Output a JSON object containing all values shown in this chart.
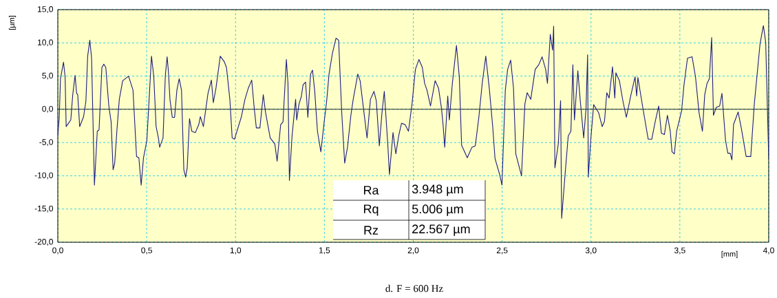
{
  "chart_data": {
    "type": "line",
    "xlabel": "[mm]",
    "ylabel": "[µm]",
    "xlim": [
      0,
      4
    ],
    "ylim": [
      -20,
      15
    ],
    "xticks": [
      {
        "value": 0,
        "label": "0,0"
      },
      {
        "value": 0.5,
        "label": "0,5"
      },
      {
        "value": 1,
        "label": "1,0"
      },
      {
        "value": 1.5,
        "label": "1,5"
      },
      {
        "value": 2,
        "label": "2,0"
      },
      {
        "value": 2.5,
        "label": "2,5"
      },
      {
        "value": 3,
        "label": "3,0"
      },
      {
        "value": 3.5,
        "label": "3,5"
      },
      {
        "value": 4,
        "label": "4,0"
      }
    ],
    "yticks": [
      {
        "value": -20,
        "label": "-20,0"
      },
      {
        "value": -15,
        "label": "-15,0"
      },
      {
        "value": -10,
        "label": "-10,0"
      },
      {
        "value": -5,
        "label": "-5,0"
      },
      {
        "value": 0,
        "label": "0,0"
      },
      {
        "value": 5,
        "label": "5,0"
      },
      {
        "value": 10,
        "label": "10,0"
      },
      {
        "value": 15,
        "label": "15,0"
      }
    ],
    "grid": true,
    "ref_lines": [
      {
        "axis": "y",
        "value": 0,
        "color": "#000000"
      }
    ],
    "annotations": [
      "Ra",
      "3.948  µm",
      "Rq",
      "5.006  µm",
      "Rz",
      "22.567 µm",
      "d. F = 600 Hz"
    ],
    "series": [
      {
        "color": "#1c1c80",
        "x": [
          0.0,
          0.008,
          0.015,
          0.032,
          0.041,
          0.047,
          0.06,
          0.073,
          0.084,
          0.097,
          0.106,
          0.112,
          0.123,
          0.145,
          0.158,
          0.168,
          0.18,
          0.19,
          0.206,
          0.222,
          0.232,
          0.248,
          0.259,
          0.27,
          0.287,
          0.3,
          0.311,
          0.32,
          0.333,
          0.346,
          0.365,
          0.398,
          0.411,
          0.423,
          0.443,
          0.456,
          0.469,
          0.482,
          0.501,
          0.527,
          0.54,
          0.553,
          0.566,
          0.573,
          0.592,
          0.605,
          0.615,
          0.622,
          0.631,
          0.644,
          0.657,
          0.67,
          0.683,
          0.696,
          0.709,
          0.719,
          0.728,
          0.741,
          0.754,
          0.774,
          0.793,
          0.802,
          0.819,
          0.845,
          0.864,
          0.875,
          0.89,
          0.914,
          0.936,
          0.949,
          0.968,
          0.981,
          0.994,
          1.033,
          1.053,
          1.072,
          1.091,
          1.104,
          1.117,
          1.137,
          1.156,
          1.169,
          1.195,
          1.221,
          1.234,
          1.254,
          1.267,
          1.286,
          1.295,
          1.303,
          1.318,
          1.338,
          1.344,
          1.357,
          1.37,
          1.38,
          1.394,
          1.407,
          1.422,
          1.433,
          1.445,
          1.461,
          1.48,
          1.5,
          1.513,
          1.526,
          1.545,
          1.565,
          1.58,
          1.597,
          1.614,
          1.63,
          1.649,
          1.662,
          1.688,
          1.701,
          1.72,
          1.74,
          1.759,
          1.779,
          1.792,
          1.809,
          1.824,
          1.837,
          1.857,
          1.866,
          1.886,
          1.902,
          1.918,
          1.934,
          1.954,
          1.973,
          1.993,
          2.012,
          2.032,
          2.051,
          2.064,
          2.077,
          2.097,
          2.123,
          2.142,
          2.159,
          2.168,
          2.177,
          2.194,
          2.203,
          2.22,
          2.243,
          2.259,
          2.272,
          2.304,
          2.33,
          2.349,
          2.369,
          2.388,
          2.408,
          2.428,
          2.447,
          2.46,
          2.486,
          2.499,
          2.518,
          2.531,
          2.548,
          2.564,
          2.577,
          2.609,
          2.628,
          2.641,
          2.661,
          2.686,
          2.706,
          2.725,
          2.745,
          2.755,
          2.771,
          2.784,
          2.79,
          2.797,
          2.816,
          2.829,
          2.835,
          2.855,
          2.872,
          2.887,
          2.898,
          2.907,
          2.926,
          2.939,
          2.959,
          2.972,
          2.981,
          2.985,
          2.998,
          3.015,
          3.043,
          3.063,
          3.076,
          3.089,
          3.102,
          3.121,
          3.134,
          3.14,
          3.16,
          3.18,
          3.199,
          3.225,
          3.248,
          3.257,
          3.264,
          3.29,
          3.322,
          3.342,
          3.361,
          3.381,
          3.396,
          3.413,
          3.43,
          3.446,
          3.456,
          3.469,
          3.482,
          3.51,
          3.523,
          3.543,
          3.569,
          3.588,
          3.608,
          3.627,
          3.64,
          3.653,
          3.666,
          3.679,
          3.689,
          3.705,
          3.724,
          3.737,
          3.757,
          3.77,
          3.783,
          3.793,
          3.802,
          3.828,
          3.847,
          3.873,
          3.899,
          3.919,
          3.951,
          3.97,
          3.983,
          4.0
        ],
        "values": [
          -4.0,
          -1.2,
          4.6,
          7.1,
          4.9,
          -2.6,
          -2.1,
          -1.6,
          2.2,
          5.1,
          2.4,
          2.2,
          -2.6,
          -1.1,
          1.2,
          8.0,
          10.4,
          7.7,
          -11.4,
          -3.3,
          -3.1,
          6.3,
          6.8,
          6.3,
          0.5,
          -1.9,
          -9.1,
          -8.1,
          -3.0,
          1.5,
          4.3,
          5.0,
          3.9,
          2.9,
          -7.1,
          -7.3,
          -11.4,
          -7.3,
          -4.7,
          8.0,
          4.9,
          -2.6,
          -4.3,
          -5.7,
          -4.3,
          5.1,
          7.9,
          5.8,
          1.5,
          -1.2,
          -1.2,
          2.9,
          4.6,
          2.9,
          -9.1,
          -10.2,
          -8.8,
          -1.4,
          -3.3,
          -3.5,
          -2.3,
          -1.1,
          -2.6,
          2.4,
          4.4,
          1.0,
          3.2,
          8.0,
          7.2,
          6.3,
          1.5,
          -4.3,
          -4.5,
          -1.1,
          1.5,
          3.2,
          4.4,
          0.5,
          -2.8,
          -2.8,
          2.2,
          -0.5,
          -4.3,
          -5.2,
          -7.8,
          -2.3,
          -1.9,
          7.5,
          3.9,
          -10.7,
          -4.0,
          1.5,
          -1.6,
          0.8,
          1.9,
          3.7,
          4.1,
          -1.2,
          5.3,
          5.9,
          2.9,
          -3.3,
          -6.4,
          -1.6,
          1.3,
          5.3,
          8.4,
          10.7,
          10.4,
          -0.2,
          -8.1,
          -5.7,
          -0.9,
          1.5,
          5.3,
          4.3,
          0.1,
          -4.3,
          1.5,
          2.7,
          1.3,
          -5.5,
          -0.5,
          2.7,
          -5.4,
          -9.8,
          -3.5,
          -6.7,
          -4.0,
          -2.1,
          -2.3,
          -3.3,
          0.8,
          6.0,
          7.5,
          6.3,
          3.9,
          2.9,
          0.5,
          4.3,
          3.2,
          0.1,
          -2.4,
          -5.7,
          2.0,
          -1.6,
          3.9,
          9.6,
          4.9,
          -5.4,
          -7.3,
          -5.7,
          -5.5,
          -1.2,
          3.9,
          8.0,
          3.1,
          -2.6,
          -7.4,
          -9.8,
          -11.4,
          2.9,
          6.0,
          7.4,
          3.2,
          -6.7,
          -10.0,
          0.8,
          2.5,
          1.5,
          6.0,
          6.7,
          7.9,
          6.0,
          3.9,
          11.3,
          8.9,
          12.5,
          -8.8,
          -5.2,
          1.3,
          -16.4,
          -9.5,
          -4.0,
          -3.3,
          6.7,
          -1.6,
          5.8,
          1.5,
          -4.3,
          0.1,
          8.2,
          -10.2,
          -4.8,
          0.7,
          -0.5,
          -2.6,
          -1.8,
          2.5,
          1.7,
          6.4,
          1.7,
          5.5,
          4.3,
          1.2,
          -1.2,
          2.2,
          4.9,
          2.0,
          4.8,
          0.5,
          -4.5,
          -4.5,
          -1.9,
          0.5,
          -3.6,
          -3.8,
          -0.9,
          -3.3,
          -6.4,
          -6.7,
          -3.3,
          -0.2,
          3.6,
          7.7,
          7.9,
          4.9,
          -0.5,
          -3.3,
          2.2,
          3.9,
          4.6,
          10.8,
          -0.9,
          0.3,
          0.5,
          2.4,
          -4.7,
          -6.6,
          -6.6,
          -7.6,
          -2.3,
          -0.4,
          -3.0,
          -7.1,
          -7.1,
          0.8,
          9.8,
          12.6,
          10.1,
          -7.4
        ]
      }
    ]
  }
}
